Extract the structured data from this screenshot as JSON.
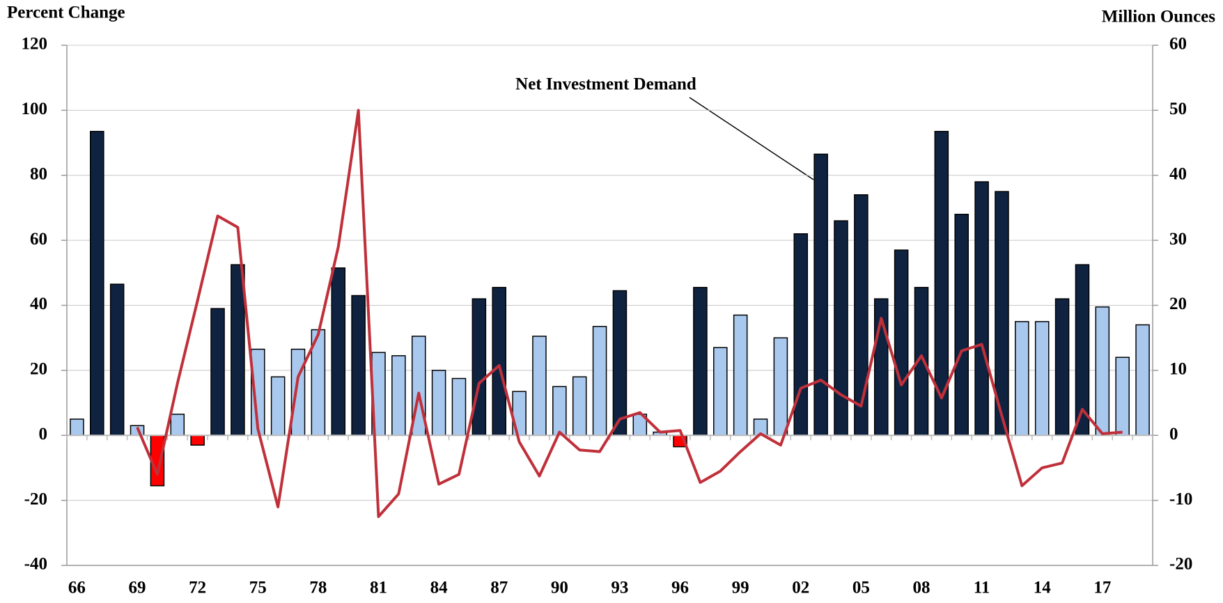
{
  "chart_data": {
    "type": "bar_line",
    "y_label": "Percent Change",
    "y2_label": "Million Ounces",
    "annotation": "Net Investment Demand",
    "categories": [
      "66",
      null,
      null,
      "69",
      null,
      null,
      "72",
      null,
      null,
      "75",
      null,
      null,
      "78",
      null,
      null,
      "81",
      null,
      null,
      "84",
      null,
      null,
      "87",
      null,
      null,
      "90",
      null,
      null,
      "93",
      null,
      null,
      "96",
      null,
      null,
      "99",
      null,
      null,
      "02",
      null,
      null,
      "05",
      null,
      null,
      "08",
      null,
      null,
      "11",
      null,
      null,
      "14",
      null,
      null,
      "17",
      null,
      null
    ],
    "series": [
      {
        "name": "Net Investment Demand",
        "kind": "bar",
        "axis": "y2",
        "colors": [
          "#a9c8ee",
          "#0f2340",
          "#0f2340",
          "#a9c8ee",
          "#ff0000",
          "#a9c8ee",
          "#ff0000",
          "#0f2340",
          "#0f2340",
          "#a9c8ee",
          "#a9c8ee",
          "#a9c8ee",
          "#a9c8ee",
          "#0f2340",
          "#0f2340",
          "#a9c8ee",
          "#a9c8ee",
          "#a9c8ee",
          "#a9c8ee",
          "#a9c8ee",
          "#0f2340",
          "#0f2340",
          "#a9c8ee",
          "#a9c8ee",
          "#a9c8ee",
          "#a9c8ee",
          "#a9c8ee",
          "#0f2340",
          "#a9c8ee",
          "#a9c8ee",
          "#ff0000",
          "#0f2340",
          "#a9c8ee",
          "#a9c8ee",
          "#a9c8ee",
          "#a9c8ee",
          "#0f2340",
          "#0f2340",
          "#0f2340",
          "#0f2340",
          "#0f2340",
          "#0f2340",
          "#0f2340",
          "#0f2340",
          "#0f2340",
          "#0f2340",
          "#0f2340",
          "#a9c8ee",
          "#a9c8ee",
          "#0f2340",
          "#0f2340",
          "#a9c8ee",
          "#a9c8ee",
          "#a9c8ee"
        ],
        "values": [
          2.5,
          46.75,
          23.25,
          1.5,
          -7.75,
          3.25,
          -1.5,
          19.5,
          26.25,
          13.25,
          9,
          13.25,
          16.25,
          25.75,
          21.5,
          12.75,
          12.25,
          15.25,
          10,
          8.75,
          21,
          22.75,
          6.75,
          15.25,
          7.5,
          9,
          16.75,
          22.25,
          3.25,
          0.5,
          -1.75,
          22.75,
          13.5,
          18.5,
          2.5,
          15,
          31,
          43.25,
          33,
          37,
          21,
          28.5,
          22.75,
          46.75,
          34,
          39,
          37.5,
          17.5,
          17.5,
          21,
          26.25,
          19.75,
          12,
          17
        ]
      },
      {
        "kind": "line",
        "axis": "y",
        "color": "#c0303a",
        "values": [
          null,
          null,
          null,
          2.5,
          -12,
          16,
          41.5,
          67.5,
          64,
          2,
          -22,
          18,
          31,
          58,
          100,
          -25,
          -18,
          13,
          -15,
          -12,
          16,
          21.5,
          -2,
          -12.5,
          1,
          -4.5,
          -5,
          5,
          7,
          1,
          1.5,
          -14.5,
          -11,
          -5,
          0.5,
          -3,
          14.5,
          17,
          12.5,
          9,
          36,
          15.5,
          24.5,
          11.5,
          26,
          28,
          6,
          -15.5,
          -10,
          -8.5,
          8,
          0.5,
          1,
          null
        ]
      }
    ],
    "ylim": [
      -40,
      120
    ],
    "yticks": [
      -40,
      -20,
      0,
      20,
      40,
      60,
      80,
      100,
      120
    ],
    "y2lim": [
      -20,
      60
    ],
    "y2ticks": [
      -20,
      -10,
      0,
      10,
      20,
      30,
      40,
      50,
      60
    ],
    "grid": true
  }
}
